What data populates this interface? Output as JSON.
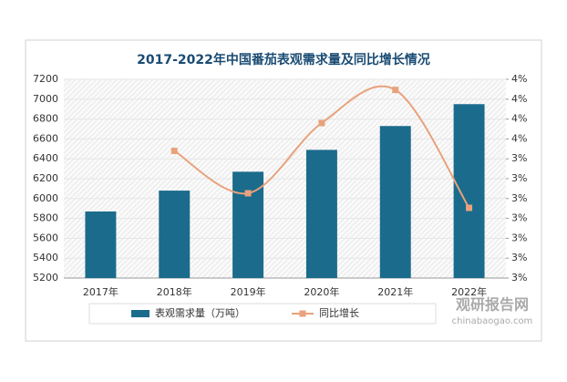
{
  "chart_data": {
    "type": "bar-line",
    "title": "2017-2022年中国番茄表观需求量及同比增长情况",
    "categories": [
      "2017年",
      "2018年",
      "2019年",
      "2020年",
      "2021年",
      "2022年"
    ],
    "series": [
      {
        "name": "表观需求量（万吨）",
        "type": "bar",
        "color": "#1b6b8c",
        "values": [
          5870,
          6080,
          6270,
          6490,
          6730,
          6950
        ]
      },
      {
        "name": "同比增长",
        "type": "line",
        "axis": "y2",
        "color": "#e8a27c",
        "values": [
          null,
          3.46,
          3.14,
          3.67,
          3.92,
          3.03
        ]
      }
    ],
    "ylim": [
      5200,
      7200
    ],
    "yticks": [
      5200,
      5400,
      5600,
      5800,
      6000,
      6200,
      6400,
      6600,
      6800,
      7000,
      7200
    ],
    "y2lim": [
      2.5,
      4.0
    ],
    "y2ticks": [
      {
        "value": 2.5,
        "label": "3%"
      },
      {
        "value": 2.65,
        "label": "3%"
      },
      {
        "value": 2.8,
        "label": "3%"
      },
      {
        "value": 2.95,
        "label": "3%"
      },
      {
        "value": 3.1,
        "label": "3%"
      },
      {
        "value": 3.25,
        "label": "3%"
      },
      {
        "value": 3.4,
        "label": "3%"
      },
      {
        "value": 3.55,
        "label": "4%"
      },
      {
        "value": 3.7,
        "label": "4%"
      },
      {
        "value": 3.85,
        "label": "4%"
      },
      {
        "value": 4.0,
        "label": "4%"
      }
    ],
    "watermark": [
      "观研报告网",
      "chinabaogao.com"
    ]
  }
}
